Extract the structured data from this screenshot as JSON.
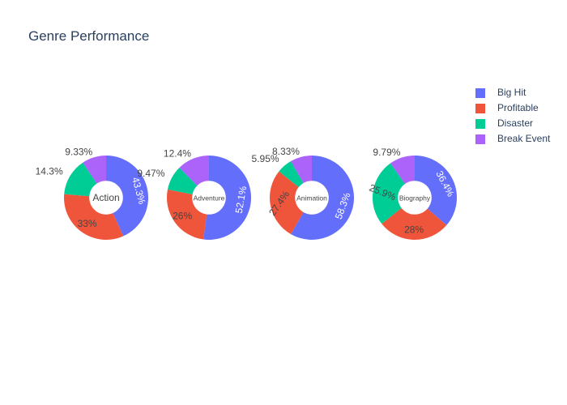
{
  "chart_data": {
    "type": "pie",
    "title": "Genre Performance",
    "legend_position": "top-right",
    "categories": [
      "Big Hit",
      "Profitable",
      "Disaster",
      "Break Event"
    ],
    "colors": {
      "Big Hit": "#636efa",
      "Profitable": "#ef553b",
      "Disaster": "#00cc96",
      "Break Event": "#ab63fa"
    },
    "charts": [
      {
        "name": "Action",
        "values": [
          43.3,
          33,
          14.3,
          9.33
        ],
        "labels": [
          "43.3%",
          "33%",
          "14.3%",
          "9.33%"
        ]
      },
      {
        "name": "Adventure",
        "values": [
          52.1,
          26,
          9.47,
          12.4
        ],
        "labels": [
          "52.1%",
          "26%",
          "9.47%",
          "12.4%"
        ]
      },
      {
        "name": "Animation",
        "values": [
          58.3,
          27.4,
          5.95,
          8.33
        ],
        "labels": [
          "58.3%",
          "27.4%",
          "5.95%",
          "8.33%"
        ]
      },
      {
        "name": "Biography",
        "values": [
          36.4,
          28,
          25.9,
          9.79
        ],
        "labels": [
          "36.4%",
          "28%",
          "25.9%",
          "9.79%"
        ]
      }
    ]
  }
}
